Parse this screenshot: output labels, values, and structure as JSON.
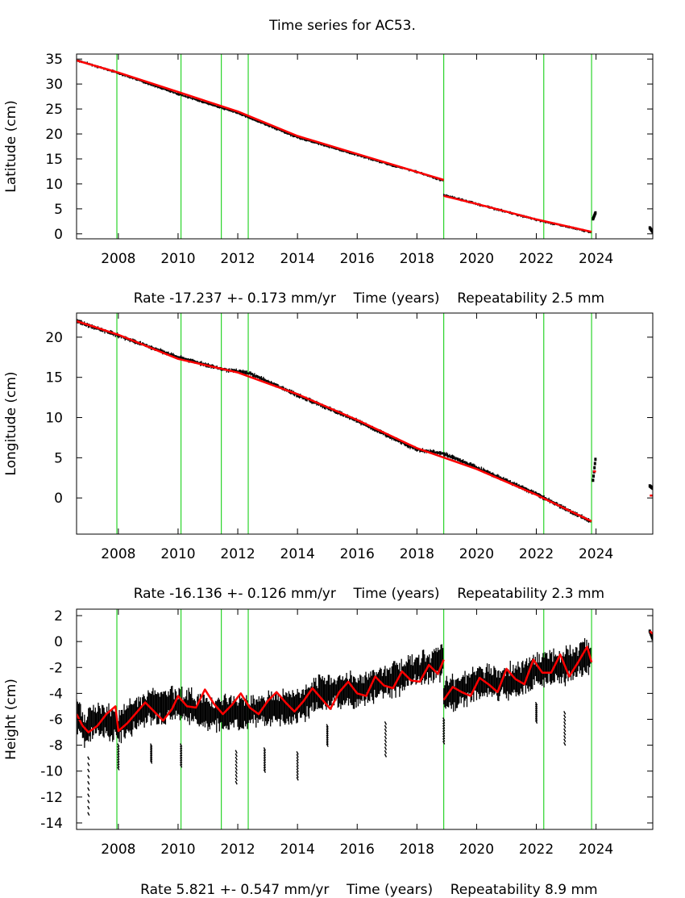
{
  "title": "Time series for AC53.",
  "chart_data": [
    {
      "type": "scatter",
      "id": "latitude",
      "ylabel": "Latitude (cm)",
      "xlim": [
        2006.6,
        2025.9
      ],
      "ylim": [
        -1,
        36
      ],
      "yticks": [
        0,
        5,
        10,
        15,
        20,
        25,
        30,
        35
      ],
      "xticks": [
        2008,
        2010,
        2012,
        2014,
        2016,
        2018,
        2020,
        2022,
        2024
      ],
      "xlabel_parts": [
        "Rate -17.237 +- 0.173 mm/yr",
        "Time (years)",
        "Repeatability 2.5 mm"
      ],
      "breaks": [
        2007.95,
        2010.1,
        2011.45,
        2012.35,
        2018.9,
        2022.25,
        2023.85
      ],
      "data_series": [
        {
          "name": "observations",
          "color": "#000000",
          "x": [
            2006.6,
            2008.0,
            2010.0,
            2012.0,
            2014.0,
            2016.0,
            2017.0,
            2018.0,
            2018.9
          ],
          "y": [
            34.8,
            32.2,
            28.0,
            24.2,
            19.3,
            15.8,
            14.0,
            12.4,
            10.6
          ]
        },
        {
          "name": "observations",
          "color": "#000000",
          "x": [
            2018.9,
            2020.0,
            2022.0,
            2023.85
          ],
          "y": [
            7.8,
            6.0,
            2.8,
            0.3
          ]
        },
        {
          "name": "observations",
          "color": "#000000",
          "x": [
            2023.9,
            2023.98
          ],
          "y": [
            3.0,
            4.2
          ]
        },
        {
          "name": "observations",
          "color": "#000000",
          "x": [
            2025.8,
            2025.9
          ],
          "y": [
            1.2,
            0.4
          ]
        }
      ],
      "fit_series": [
        {
          "name": "model",
          "color": "#ff0000",
          "x": [
            2006.6,
            2008.0,
            2010.0,
            2012.0,
            2014.0,
            2016.0,
            2018.0,
            2018.9
          ],
          "y": [
            34.7,
            32.3,
            28.4,
            24.5,
            19.6,
            16.0,
            12.4,
            10.8
          ]
        },
        {
          "name": "model",
          "color": "#ff0000",
          "x": [
            2018.9,
            2020.0,
            2022.0,
            2023.85
          ],
          "y": [
            7.6,
            6.0,
            2.9,
            0.4
          ]
        }
      ]
    },
    {
      "type": "scatter",
      "id": "longitude",
      "ylabel": "Longitude (cm)",
      "xlim": [
        2006.6,
        2025.9
      ],
      "ylim": [
        -4.5,
        23
      ],
      "yticks": [
        0,
        5,
        10,
        15,
        20
      ],
      "xticks": [
        2008,
        2010,
        2012,
        2014,
        2016,
        2018,
        2020,
        2022,
        2024
      ],
      "xlabel_parts": [
        "Rate -16.136 +- 0.126 mm/yr",
        "Time (years)",
        "Repeatability 2.3 mm"
      ],
      "breaks": [
        2007.95,
        2010.1,
        2011.45,
        2012.35,
        2018.9,
        2022.25,
        2023.85
      ],
      "data_series": [
        {
          "name": "observations",
          "color": "#000000",
          "x": [
            2006.6,
            2008.0,
            2010.0,
            2011.5,
            2012.4,
            2014.0,
            2016.0,
            2018.0,
            2018.9,
            2020.0,
            2022.0,
            2023.85
          ],
          "y": [
            22.0,
            20.2,
            17.5,
            16.0,
            15.5,
            12.8,
            9.6,
            6.0,
            5.5,
            3.8,
            0.5,
            -3.0
          ]
        },
        {
          "name": "observations",
          "color": "#000000",
          "x": [
            2023.9,
            2023.98
          ],
          "y": [
            2.2,
            4.8
          ]
        },
        {
          "name": "observations",
          "color": "#000000",
          "x": [
            2025.8,
            2025.9
          ],
          "y": [
            1.5,
            1.2
          ]
        }
      ],
      "fit_series": [
        {
          "name": "model",
          "color": "#ff0000",
          "x": [
            2006.6,
            2008.0,
            2010.0,
            2012.0,
            2014.0,
            2016.0,
            2018.0,
            2020.0,
            2022.0,
            2023.85
          ],
          "y": [
            22.0,
            20.3,
            17.3,
            15.6,
            12.9,
            9.7,
            6.2,
            3.6,
            0.4,
            -2.9
          ]
        },
        {
          "name": "model",
          "color": "#ff0000",
          "x": [
            2023.9,
            2024.0
          ],
          "y": [
            3.3,
            3.3
          ]
        },
        {
          "name": "model",
          "color": "#ff0000",
          "x": [
            2025.8,
            2025.9
          ],
          "y": [
            0.3,
            0.3
          ]
        }
      ]
    },
    {
      "type": "scatter",
      "id": "height",
      "ylabel": "Height (cm)",
      "xlim": [
        2006.6,
        2025.9
      ],
      "ylim": [
        -14.5,
        2.5
      ],
      "yticks": [
        2,
        0,
        -2,
        -4,
        -6,
        -8,
        -10,
        -12,
        -14
      ],
      "xticks": [
        2008,
        2010,
        2012,
        2014,
        2016,
        2018,
        2020,
        2022,
        2024
      ],
      "xlabel_parts": [
        "Rate 5.821 +- 0.547 mm/yr",
        "Time (years)",
        "Repeatability 8.9 mm"
      ],
      "breaks": [
        2007.95,
        2010.1,
        2011.45,
        2012.35,
        2018.9,
        2022.25,
        2023.85
      ],
      "data_series": [
        {
          "name": "observations",
          "color": "#000000",
          "x": [
            2006.6,
            2006.9,
            2007.2,
            2008.0,
            2009.0,
            2010.0,
            2011.0,
            2012.0,
            2013.0,
            2014.0,
            2015.0,
            2016.0,
            2017.0,
            2018.0,
            2018.9
          ],
          "y": [
            -5.5,
            -6.8,
            -6.0,
            -6.5,
            -5.0,
            -4.8,
            -5.5,
            -5.5,
            -5.2,
            -5.0,
            -3.8,
            -3.8,
            -3.0,
            -2.2,
            -1.6
          ]
        },
        {
          "name": "observations",
          "color": "#000000",
          "x": [
            2018.9,
            2020.0,
            2021.0,
            2022.0,
            2023.0,
            2023.85
          ],
          "y": [
            -4.2,
            -3.2,
            -3.2,
            -2.2,
            -1.9,
            -1.0
          ]
        },
        {
          "name": "observations",
          "color": "#000000",
          "x": [
            2025.8,
            2025.9
          ],
          "y": [
            0.8,
            0.2
          ]
        }
      ],
      "outliers": [
        {
          "x": [
            2007.0,
            2007.0
          ],
          "y": [
            -9.0,
            -13.3
          ]
        },
        {
          "x": [
            2008.0,
            2008.0
          ],
          "y": [
            -8.0,
            -9.8
          ]
        },
        {
          "x": [
            2009.1,
            2009.1
          ],
          "y": [
            -8.0,
            -9.3
          ]
        },
        {
          "x": [
            2010.1,
            2010.1
          ],
          "y": [
            -8.0,
            -9.6
          ]
        },
        {
          "x": [
            2011.95,
            2011.95
          ],
          "y": [
            -8.5,
            -10.9
          ]
        },
        {
          "x": [
            2012.9,
            2012.9
          ],
          "y": [
            -8.3,
            -10.0
          ]
        },
        {
          "x": [
            2014.0,
            2014.0
          ],
          "y": [
            -8.6,
            -10.6
          ]
        },
        {
          "x": [
            2015.0,
            2015.0
          ],
          "y": [
            -6.5,
            -8.0
          ]
        },
        {
          "x": [
            2016.95,
            2016.95
          ],
          "y": [
            -6.3,
            -8.8
          ]
        },
        {
          "x": [
            2018.9,
            2018.9
          ],
          "y": [
            -6.0,
            -7.8
          ]
        },
        {
          "x": [
            2022.0,
            2022.0
          ],
          "y": [
            -4.8,
            -6.2
          ]
        },
        {
          "x": [
            2022.95,
            2022.95
          ],
          "y": [
            -5.5,
            -7.9
          ]
        }
      ],
      "fit_series": [
        {
          "name": "model",
          "color": "#ff0000",
          "x": [
            2006.6,
            2006.8,
            2007.0,
            2007.3,
            2007.6,
            2007.9,
            2008.0,
            2008.3,
            2008.6,
            2008.9,
            2009.2,
            2009.5,
            2009.8,
            2010.0,
            2010.3,
            2010.6,
            2010.9,
            2011.2,
            2011.5,
            2011.8,
            2012.1,
            2012.4,
            2012.7,
            2013.0,
            2013.3,
            2013.6,
            2013.9,
            2014.2,
            2014.5,
            2014.8,
            2015.1,
            2015.4,
            2015.7,
            2016.0,
            2016.3,
            2016.6,
            2016.9,
            2017.2,
            2017.5,
            2017.8,
            2018.1,
            2018.4,
            2018.7,
            2018.9
          ],
          "y": [
            -5.6,
            -6.5,
            -7.0,
            -6.5,
            -5.6,
            -5.0,
            -6.9,
            -6.3,
            -5.5,
            -4.7,
            -5.4,
            -6.1,
            -5.2,
            -4.2,
            -5.0,
            -5.1,
            -3.7,
            -4.8,
            -5.6,
            -4.9,
            -4.0,
            -5.1,
            -5.6,
            -4.6,
            -3.9,
            -4.7,
            -5.4,
            -4.6,
            -3.6,
            -4.4,
            -5.2,
            -3.9,
            -3.1,
            -4.0,
            -4.2,
            -2.7,
            -3.4,
            -3.6,
            -2.3,
            -3.0,
            -3.1,
            -1.8,
            -2.5,
            -1.4
          ]
        },
        {
          "name": "model",
          "color": "#ff0000",
          "x": [
            2018.9,
            2019.2,
            2019.5,
            2019.8,
            2020.1,
            2020.4,
            2020.7,
            2021.0,
            2021.3,
            2021.6,
            2021.9,
            2022.2,
            2022.5,
            2022.8,
            2023.1,
            2023.4,
            2023.7,
            2023.85
          ],
          "y": [
            -4.5,
            -3.5,
            -3.9,
            -4.2,
            -2.8,
            -3.3,
            -3.9,
            -2.1,
            -2.9,
            -3.3,
            -1.4,
            -2.4,
            -2.4,
            -1.0,
            -2.7,
            -1.6,
            -0.4,
            -1.6
          ]
        },
        {
          "name": "model",
          "color": "#ff0000",
          "x": [
            2025.8,
            2025.9
          ],
          "y": [
            0.8,
            0.6
          ]
        }
      ]
    }
  ]
}
